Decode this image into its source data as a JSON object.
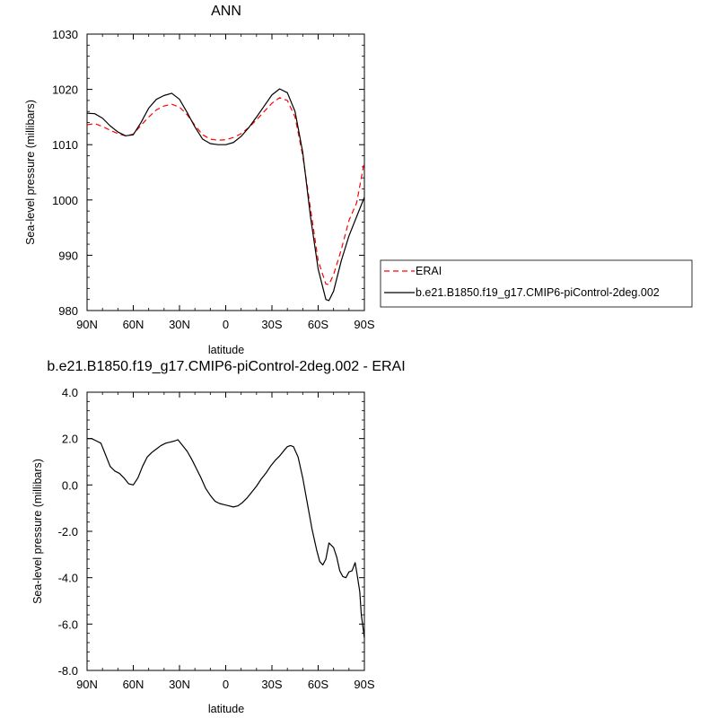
{
  "chart_data": [
    {
      "type": "line",
      "title": "ANN",
      "xlabel": "latitude",
      "ylabel": "Sea-level pressure (millibars)",
      "xlim": [
        90,
        -90
      ],
      "ylim": [
        980,
        1030
      ],
      "x_tick_values": [
        90,
        60,
        30,
        0,
        -30,
        -60,
        -90
      ],
      "x_tick_labels": [
        "90N",
        "60N",
        "30N",
        "0",
        "30S",
        "60S",
        "90S"
      ],
      "y_tick_values": [
        980,
        990,
        1000,
        1010,
        1020,
        1030
      ],
      "y_tick_labels": [
        "980",
        "990",
        "1000",
        "1010",
        "1020",
        "1030"
      ],
      "grid": false,
      "legend_position": "right",
      "series": [
        {
          "name": "ERAI",
          "color": "#ff0000",
          "dash": "dashed",
          "x": [
            90,
            85,
            80,
            75,
            70,
            65,
            60,
            55,
            50,
            45,
            40,
            35,
            30,
            25,
            20,
            15,
            10,
            5,
            0,
            -5,
            -10,
            -15,
            -20,
            -25,
            -30,
            -35,
            -40,
            -45,
            -50,
            -55,
            -60,
            -65,
            -67,
            -70,
            -75,
            -80,
            -85,
            -90
          ],
          "y": [
            1013.6,
            1013.8,
            1013.3,
            1012.6,
            1012.0,
            1011.6,
            1011.9,
            1013.5,
            1015.0,
            1016.3,
            1017.0,
            1017.3,
            1016.8,
            1015.4,
            1013.5,
            1011.8,
            1011.0,
            1010.8,
            1010.9,
            1011.3,
            1012.0,
            1013.1,
            1014.5,
            1016.0,
            1017.5,
            1018.5,
            1018.0,
            1015.0,
            1008.0,
            998.5,
            989.0,
            984.8,
            984.7,
            986.5,
            991.0,
            996.3,
            999.5,
            1007.0
          ]
        },
        {
          "name": "b.e21.B1850.f19_g17.CMIP6-piControl-2deg.002",
          "color": "#000000",
          "dash": "solid",
          "x": [
            90,
            85,
            80,
            75,
            70,
            65,
            60,
            55,
            50,
            45,
            40,
            35,
            30,
            25,
            20,
            15,
            10,
            5,
            0,
            -5,
            -10,
            -15,
            -20,
            -25,
            -30,
            -35,
            -40,
            -45,
            -50,
            -55,
            -60,
            -65,
            -67,
            -70,
            -75,
            -80,
            -85,
            -90
          ],
          "y": [
            1015.7,
            1015.6,
            1014.8,
            1013.4,
            1012.3,
            1011.6,
            1011.8,
            1014.0,
            1016.6,
            1018.2,
            1018.9,
            1019.3,
            1018.2,
            1015.8,
            1013.2,
            1011.0,
            1010.2,
            1010.0,
            1010.0,
            1010.4,
            1011.5,
            1013.1,
            1015.0,
            1017.0,
            1019.0,
            1020.1,
            1019.4,
            1016.0,
            1008.6,
            997.0,
            987.5,
            982.0,
            981.8,
            983.5,
            989.0,
            993.5,
            997.0,
            1000.5
          ]
        }
      ]
    },
    {
      "type": "line",
      "title": "b.e21.B1850.f19_g17.CMIP6-piControl-2deg.002 - ERAI",
      "xlabel": "latitude",
      "ylabel": "Sea-level pressure (millibars)",
      "xlim": [
        90,
        -90
      ],
      "ylim": [
        -8.0,
        4.0
      ],
      "x_tick_values": [
        90,
        60,
        30,
        0,
        -30,
        -60,
        -90
      ],
      "x_tick_labels": [
        "90N",
        "60N",
        "30N",
        "0",
        "30S",
        "60S",
        "90S"
      ],
      "y_tick_values": [
        -8,
        -6,
        -4,
        -2,
        0,
        2,
        4
      ],
      "y_tick_labels": [
        "-8.0",
        "-6.0",
        "-4.0",
        "-2.0",
        "0.0",
        "2.0",
        "4.0"
      ],
      "grid": false,
      "series": [
        {
          "color": "#000000",
          "dash": "solid",
          "x": [
            90,
            87,
            84,
            81,
            78,
            75,
            72,
            69,
            66,
            63,
            60,
            57,
            54,
            51,
            48,
            45,
            42,
            39,
            36,
            33,
            31,
            28,
            25,
            22,
            19,
            16,
            13,
            10,
            7,
            4,
            1,
            -2,
            -5,
            -8,
            -11,
            -14,
            -17,
            -20,
            -23,
            -26,
            -29,
            -32,
            -35,
            -38,
            -40,
            -42,
            -44,
            -47,
            -50,
            -53,
            -56,
            -59,
            -61,
            -63,
            -65,
            -67,
            -70,
            -72,
            -74,
            -76,
            -78,
            -80,
            -82,
            -84,
            -85,
            -87,
            -88,
            -90
          ],
          "y": [
            2.0,
            2.0,
            1.9,
            1.8,
            1.3,
            0.8,
            0.6,
            0.5,
            0.3,
            0.05,
            0.0,
            0.3,
            0.8,
            1.2,
            1.4,
            1.55,
            1.7,
            1.8,
            1.85,
            1.9,
            1.95,
            1.7,
            1.45,
            1.1,
            0.7,
            0.3,
            -0.15,
            -0.45,
            -0.7,
            -0.8,
            -0.85,
            -0.9,
            -0.95,
            -0.9,
            -0.75,
            -0.55,
            -0.3,
            -0.05,
            0.25,
            0.5,
            0.8,
            1.05,
            1.25,
            1.5,
            1.65,
            1.7,
            1.65,
            1.2,
            0.3,
            -0.8,
            -1.9,
            -2.8,
            -3.3,
            -3.45,
            -3.2,
            -2.5,
            -2.7,
            -3.1,
            -3.7,
            -3.95,
            -4.0,
            -3.75,
            -3.7,
            -3.35,
            -3.75,
            -4.6,
            -5.6,
            -6.6
          ]
        }
      ]
    }
  ]
}
